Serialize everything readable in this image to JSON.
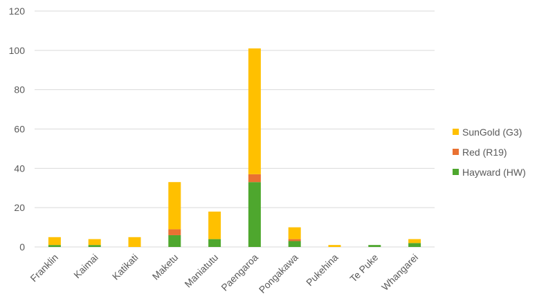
{
  "chart_data": {
    "type": "bar",
    "stacked": true,
    "title": "",
    "xlabel": "",
    "ylabel": "",
    "categories": [
      "Franklin",
      "Kaimai",
      "Katikati",
      "Maketu",
      "Maniatutu",
      "Paengaroa",
      "Pongakawa",
      "Pukehina",
      "Te Puke",
      "Whangarei"
    ],
    "series": [
      {
        "name": "Hayward (HW)",
        "color": "#4EA72E",
        "values": [
          1,
          1,
          0,
          6,
          4,
          33,
          3,
          0,
          1,
          2
        ]
      },
      {
        "name": "Red (R19)",
        "color": "#E97132",
        "values": [
          0,
          0,
          0,
          3,
          0,
          4,
          1,
          0,
          0,
          0
        ]
      },
      {
        "name": "SunGold (G3)",
        "color": "#FFC000",
        "values": [
          4,
          3,
          5,
          24,
          14,
          64,
          6,
          1,
          0,
          2
        ]
      }
    ],
    "ylim": [
      0,
      120
    ],
    "yticks": [
      0,
      20,
      40,
      60,
      80,
      100,
      120
    ],
    "grid": true,
    "legend_position": "right",
    "legend_order": [
      "SunGold (G3)",
      "Red (R19)",
      "Hayward (HW)"
    ]
  }
}
